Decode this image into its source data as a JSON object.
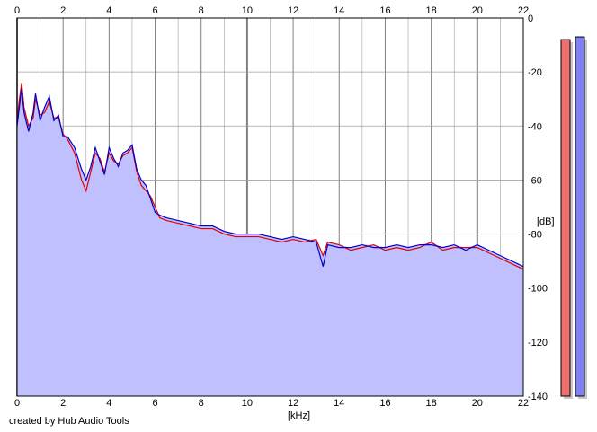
{
  "chart_data": {
    "type": "area",
    "title": "",
    "xlabel": "[kHz]",
    "ylabel": "[dB]",
    "xlim": [
      0,
      22
    ],
    "ylim": [
      -140,
      0
    ],
    "x_ticks": [
      0,
      2,
      4,
      6,
      8,
      10,
      12,
      14,
      16,
      18,
      20,
      22
    ],
    "y_ticks": [
      0,
      -20,
      -40,
      -60,
      -80,
      -100,
      -120,
      -140
    ],
    "grid": true,
    "legend": "none",
    "colors": {
      "fill": "#c0c0ff",
      "series_blue": "#0000c8",
      "series_red": "#e00000",
      "grid": "#a0a0a0",
      "grid_major": "#808080",
      "meter_red": "#f07070",
      "meter_blue": "#8080f0"
    },
    "series": [
      {
        "x": [
          0,
          0.1,
          0.2,
          0.3,
          0.5,
          0.7,
          0.8,
          1.0,
          1.2,
          1.4,
          1.6,
          1.8,
          2.0,
          2.2,
          2.5,
          2.8,
          3.0,
          3.2,
          3.4,
          3.6,
          3.8,
          4.0,
          4.2,
          4.4,
          4.6,
          4.8,
          5.0,
          5.2,
          5.4,
          5.6,
          5.8,
          6.0,
          6.2,
          6.5,
          7.0,
          7.5,
          8.0,
          8.5,
          9.0,
          9.5,
          10.0,
          10.5,
          11.0,
          11.5,
          12.0,
          12.5,
          13.0,
          13.3,
          13.5,
          14.0,
          14.5,
          15.0,
          15.5,
          16.0,
          16.5,
          17.0,
          17.5,
          18.0,
          18.5,
          19.0,
          19.5,
          20.0,
          20.5,
          21.0,
          21.5,
          22.0
        ],
        "values": [
          -40,
          -33,
          -26,
          -35,
          -42,
          -35,
          -28,
          -38,
          -33,
          -29,
          -38,
          -36,
          -44,
          -44,
          -48,
          -56,
          -60,
          -55,
          -48,
          -53,
          -58,
          -48,
          -52,
          -55,
          -50,
          -49,
          -47,
          -56,
          -60,
          -62,
          -67,
          -72,
          -73,
          -74,
          -75,
          -76,
          -77,
          -77,
          -79,
          -80,
          -80,
          -80,
          -81,
          -82,
          -81,
          -82,
          -83,
          -92,
          -84,
          -85,
          -85,
          -84,
          -85,
          -85,
          -84,
          -85,
          -84,
          -84,
          -85,
          -84,
          -86,
          -84,
          -86,
          -88,
          -90,
          -92
        ]
      },
      {
        "x": [
          0,
          0.1,
          0.2,
          0.3,
          0.5,
          0.7,
          0.8,
          1.0,
          1.2,
          1.4,
          1.6,
          1.8,
          2.0,
          2.2,
          2.5,
          2.8,
          3.0,
          3.2,
          3.4,
          3.6,
          3.8,
          4.0,
          4.2,
          4.4,
          4.6,
          4.8,
          5.0,
          5.2,
          5.4,
          5.6,
          5.8,
          6.0,
          6.2,
          6.5,
          7.0,
          7.5,
          8.0,
          8.5,
          9.0,
          9.5,
          10.0,
          10.5,
          11.0,
          11.5,
          12.0,
          12.5,
          13.0,
          13.3,
          13.5,
          14.0,
          14.5,
          15.0,
          15.5,
          16.0,
          16.5,
          17.0,
          17.5,
          18.0,
          18.5,
          19.0,
          19.5,
          20.0,
          20.5,
          21.0,
          21.5,
          22.0
        ],
        "values": [
          -38,
          -30,
          -24,
          -33,
          -40,
          -37,
          -30,
          -36,
          -35,
          -31,
          -37,
          -37,
          -43,
          -45,
          -50,
          -60,
          -64,
          -57,
          -50,
          -52,
          -57,
          -50,
          -53,
          -54,
          -51,
          -50,
          -48,
          -57,
          -62,
          -64,
          -66,
          -70,
          -74,
          -75,
          -76,
          -77,
          -78,
          -78,
          -80,
          -81,
          -81,
          -81,
          -82,
          -83,
          -82,
          -83,
          -82,
          -88,
          -83,
          -84,
          -86,
          -85,
          -84,
          -86,
          -85,
          -86,
          -85,
          -83,
          -86,
          -85,
          -85,
          -85,
          -87,
          -89,
          -91,
          -93
        ]
      }
    ],
    "meters": [
      {
        "top_db": -8,
        "color": "red"
      },
      {
        "top_db": -7,
        "color": "blue"
      }
    ]
  },
  "labels": {
    "credit": "created by Hub Audio Tools",
    "xaxis_unit": "[kHz]",
    "yaxis_unit": "[dB]"
  }
}
